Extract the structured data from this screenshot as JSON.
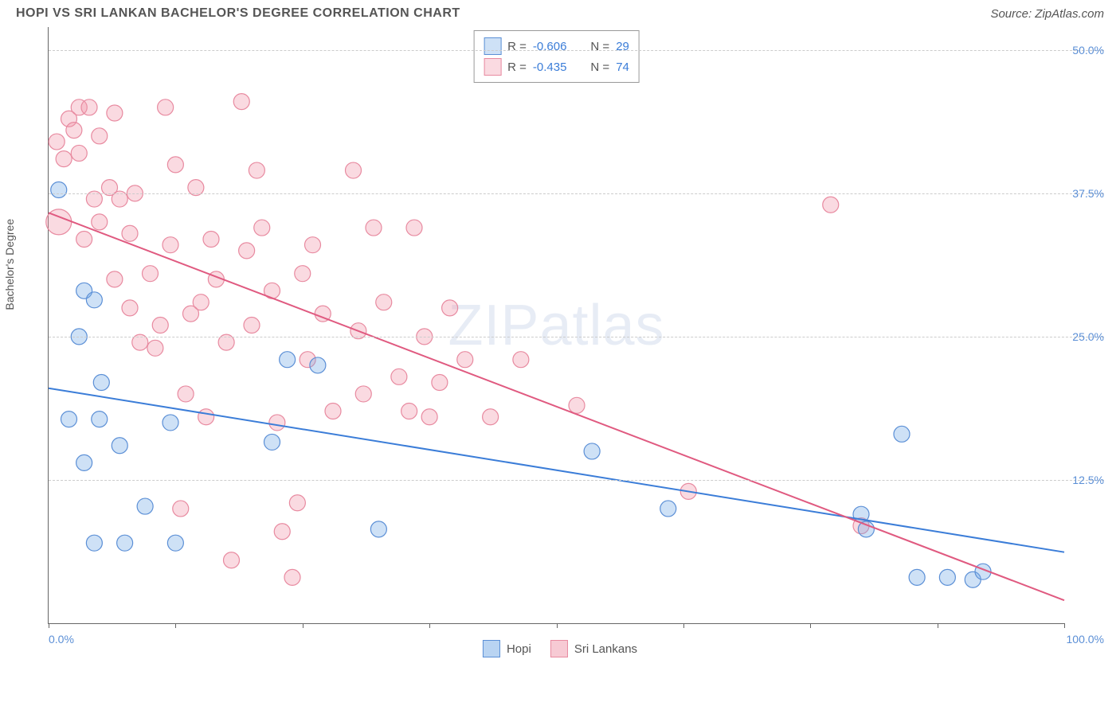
{
  "title": "HOPI VS SRI LANKAN BACHELOR'S DEGREE CORRELATION CHART",
  "source": "Source: ZipAtlas.com",
  "watermark_bold": "ZIP",
  "watermark_light": "atlas",
  "ylabel": "Bachelor's Degree",
  "chart": {
    "type": "scatter",
    "xlim": [
      0,
      100
    ],
    "ylim": [
      0,
      52
    ],
    "yticks": [
      12.5,
      25.0,
      37.5,
      50.0
    ],
    "ytick_labels": [
      "12.5%",
      "25.0%",
      "37.5%",
      "50.0%"
    ],
    "xticks": [
      0,
      12.5,
      25,
      37.5,
      50,
      62.5,
      75,
      87.5,
      100
    ],
    "xaxis_min_label": "0.0%",
    "xaxis_max_label": "100.0%",
    "background_color": "#ffffff",
    "grid_color": "#cccccc",
    "axis_color": "#666666",
    "marker_radius": 10,
    "marker_stroke_width": 1.2,
    "line_width": 2,
    "series": [
      {
        "name": "Hopi",
        "label": "Hopi",
        "fill": "rgba(116,170,230,0.35)",
        "stroke": "#5b8fd6",
        "line_color": "#3b7dd8",
        "R": "-0.606",
        "N": "29",
        "trend": {
          "x1": 0,
          "y1": 20.5,
          "x2": 100,
          "y2": 6.2
        },
        "points": [
          [
            1.0,
            37.8,
            10
          ],
          [
            3.5,
            29.0,
            10
          ],
          [
            3.0,
            25.0,
            10
          ],
          [
            5.2,
            21.0,
            10
          ],
          [
            4.5,
            28.2,
            10
          ],
          [
            2.0,
            17.8,
            10
          ],
          [
            5.0,
            17.8,
            10
          ],
          [
            3.5,
            14.0,
            10
          ],
          [
            7.0,
            15.5,
            10
          ],
          [
            4.5,
            7.0,
            10
          ],
          [
            7.5,
            7.0,
            10
          ],
          [
            9.5,
            10.2,
            10
          ],
          [
            12.0,
            17.5,
            10
          ],
          [
            12.5,
            7.0,
            10
          ],
          [
            22.0,
            15.8,
            10
          ],
          [
            23.5,
            23.0,
            10
          ],
          [
            26.5,
            22.5,
            10
          ],
          [
            32.5,
            8.2,
            10
          ],
          [
            53.5,
            15.0,
            10
          ],
          [
            61.0,
            10.0,
            10
          ],
          [
            80.0,
            9.5,
            10
          ],
          [
            80.5,
            8.2,
            10
          ],
          [
            84.0,
            16.5,
            10
          ],
          [
            85.5,
            4.0,
            10
          ],
          [
            88.5,
            4.0,
            10
          ],
          [
            91.0,
            3.8,
            10
          ],
          [
            92.0,
            4.5,
            10
          ]
        ]
      },
      {
        "name": "Sri Lankans",
        "label": "Sri Lankans",
        "fill": "rgba(240,150,170,0.35)",
        "stroke": "#e88aa0",
        "line_color": "#e05a80",
        "R": "-0.435",
        "N": "74",
        "trend": {
          "x1": 0,
          "y1": 35.8,
          "x2": 100,
          "y2": 2.0
        },
        "points": [
          [
            1.0,
            35.0,
            16
          ],
          [
            0.8,
            42.0,
            10
          ],
          [
            2.0,
            44.0,
            10
          ],
          [
            1.5,
            40.5,
            10
          ],
          [
            2.5,
            43.0,
            10
          ],
          [
            3.0,
            45.0,
            10
          ],
          [
            4.0,
            45.0,
            10
          ],
          [
            3.0,
            41.0,
            10
          ],
          [
            4.5,
            37.0,
            10
          ],
          [
            3.5,
            33.5,
            10
          ],
          [
            5.0,
            42.5,
            10
          ],
          [
            5.0,
            35.0,
            10
          ],
          [
            6.0,
            38.0,
            10
          ],
          [
            6.5,
            44.5,
            10
          ],
          [
            7.0,
            37.0,
            10
          ],
          [
            8.0,
            34.0,
            10
          ],
          [
            8.5,
            37.5,
            10
          ],
          [
            9.0,
            24.5,
            10
          ],
          [
            6.5,
            30.0,
            10
          ],
          [
            8.0,
            27.5,
            10
          ],
          [
            10.0,
            30.5,
            10
          ],
          [
            10.5,
            24.0,
            10
          ],
          [
            11.0,
            26.0,
            10
          ],
          [
            11.5,
            45.0,
            10
          ],
          [
            12.0,
            33.0,
            10
          ],
          [
            12.5,
            40.0,
            10
          ],
          [
            13.0,
            10.0,
            10
          ],
          [
            13.5,
            20.0,
            10
          ],
          [
            14.0,
            27.0,
            10
          ],
          [
            14.5,
            38.0,
            10
          ],
          [
            15.0,
            28.0,
            10
          ],
          [
            15.5,
            18.0,
            10
          ],
          [
            16.0,
            33.5,
            10
          ],
          [
            16.5,
            30.0,
            10
          ],
          [
            17.5,
            24.5,
            10
          ],
          [
            18.0,
            5.5,
            10
          ],
          [
            19.0,
            45.5,
            10
          ],
          [
            19.5,
            32.5,
            10
          ],
          [
            20.0,
            26.0,
            10
          ],
          [
            20.5,
            39.5,
            10
          ],
          [
            21.0,
            34.5,
            10
          ],
          [
            22.0,
            29.0,
            10
          ],
          [
            22.5,
            17.5,
            10
          ],
          [
            23.0,
            8.0,
            10
          ],
          [
            24.0,
            4.0,
            10
          ],
          [
            24.5,
            10.5,
            10
          ],
          [
            25.0,
            30.5,
            10
          ],
          [
            25.5,
            23.0,
            10
          ],
          [
            26.0,
            33.0,
            10
          ],
          [
            27.0,
            27.0,
            10
          ],
          [
            28.0,
            18.5,
            10
          ],
          [
            30.0,
            39.5,
            10
          ],
          [
            30.5,
            25.5,
            10
          ],
          [
            31.0,
            20.0,
            10
          ],
          [
            32.0,
            34.5,
            10
          ],
          [
            33.0,
            28.0,
            10
          ],
          [
            34.5,
            21.5,
            10
          ],
          [
            35.5,
            18.5,
            10
          ],
          [
            36.0,
            34.5,
            10
          ],
          [
            37.0,
            25.0,
            10
          ],
          [
            37.5,
            18.0,
            10
          ],
          [
            38.5,
            21.0,
            10
          ],
          [
            39.5,
            27.5,
            10
          ],
          [
            41.0,
            23.0,
            10
          ],
          [
            43.5,
            18.0,
            10
          ],
          [
            46.5,
            23.0,
            10
          ],
          [
            52.0,
            19.0,
            10
          ],
          [
            63.0,
            11.5,
            10
          ],
          [
            77.0,
            36.5,
            10
          ],
          [
            80.0,
            8.5,
            10
          ]
        ]
      }
    ]
  },
  "legend_bottom": [
    {
      "label": "Hopi",
      "fill": "rgba(116,170,230,0.5)",
      "stroke": "#5b8fd6"
    },
    {
      "label": "Sri Lankans",
      "fill": "rgba(240,150,170,0.5)",
      "stroke": "#e88aa0"
    }
  ]
}
